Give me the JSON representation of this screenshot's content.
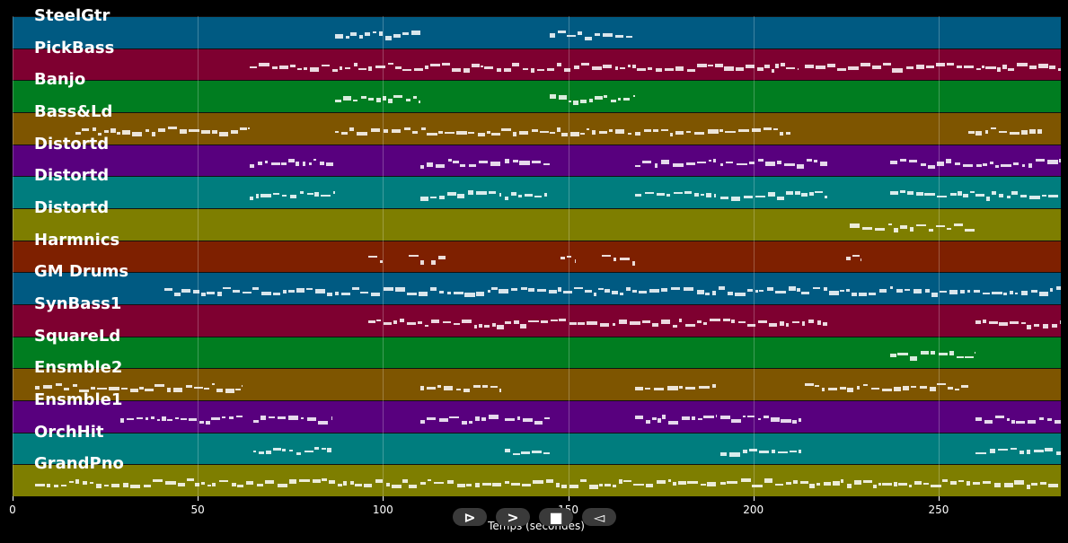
{
  "chart_data": {
    "type": "piano-roll",
    "xlabel": "Temps (secondes)",
    "xlim": [
      0,
      283
    ],
    "x_ticks": [
      0,
      50,
      100,
      150,
      200,
      250
    ],
    "tracks": [
      {
        "name": "SteelGtr",
        "color": "#005a82",
        "segments": [
          [
            87,
            110
          ],
          [
            145,
            168
          ]
        ]
      },
      {
        "name": "PickBass",
        "color": "#7e0030",
        "segments": [
          [
            64,
            212
          ],
          [
            214,
            283
          ]
        ]
      },
      {
        "name": "Banjo",
        "color": "#007d20",
        "segments": [
          [
            87,
            110
          ],
          [
            145,
            168
          ]
        ]
      },
      {
        "name": "Bass&Ld",
        "color": "#7e5500",
        "segments": [
          [
            17,
            64
          ],
          [
            87,
            210
          ],
          [
            258,
            278
          ]
        ]
      },
      {
        "name": "Distortd",
        "color": "#58007e",
        "segments": [
          [
            64,
            87
          ],
          [
            110,
            132
          ],
          [
            133,
            145
          ],
          [
            168,
            190
          ],
          [
            191,
            220
          ],
          [
            237,
            283
          ]
        ]
      },
      {
        "name": "Distortd",
        "color": "#007d7e",
        "segments": [
          [
            64,
            87
          ],
          [
            110,
            132
          ],
          [
            133,
            145
          ],
          [
            168,
            190
          ],
          [
            191,
            220
          ],
          [
            237,
            283
          ]
        ]
      },
      {
        "name": "Distortd",
        "color": "#7e7e00",
        "segments": [
          [
            226,
            260
          ]
        ]
      },
      {
        "name": "Harmnics",
        "color": "#7e2000",
        "segments": [
          [
            96,
            100
          ],
          [
            107,
            111
          ],
          [
            113,
            117
          ],
          [
            148,
            152
          ],
          [
            159,
            163
          ],
          [
            164,
            168
          ],
          [
            225,
            229
          ]
        ]
      },
      {
        "name": "GM Drums",
        "color": "#005a82",
        "segments": [
          [
            41,
            283
          ]
        ]
      },
      {
        "name": "SynBass1",
        "color": "#7e0030",
        "segments": [
          [
            96,
            220
          ],
          [
            260,
            283
          ]
        ]
      },
      {
        "name": "SquareLd",
        "color": "#007d20",
        "segments": [
          [
            237,
            260
          ]
        ]
      },
      {
        "name": "Ensmble2",
        "color": "#7e5500",
        "segments": [
          [
            6,
            62
          ],
          [
            110,
            132
          ],
          [
            168,
            190
          ],
          [
            214,
            258
          ]
        ]
      },
      {
        "name": "Ensmble1",
        "color": "#58007e",
        "segments": [
          [
            29,
            62
          ],
          [
            65,
            86
          ],
          [
            110,
            132
          ],
          [
            133,
            145
          ],
          [
            168,
            190
          ],
          [
            191,
            213
          ],
          [
            260,
            283
          ]
        ]
      },
      {
        "name": "OrchHit",
        "color": "#007d7e",
        "segments": [
          [
            65,
            86
          ],
          [
            133,
            145
          ],
          [
            191,
            213
          ],
          [
            260,
            283
          ]
        ]
      },
      {
        "name": "GrandPno",
        "color": "#7e7e00",
        "segments": [
          [
            6,
            132
          ],
          [
            133,
            190
          ],
          [
            191,
            283
          ]
        ]
      }
    ]
  },
  "controls": {
    "play": "⊳",
    "next": ">",
    "stop": "■",
    "back": "◅"
  }
}
